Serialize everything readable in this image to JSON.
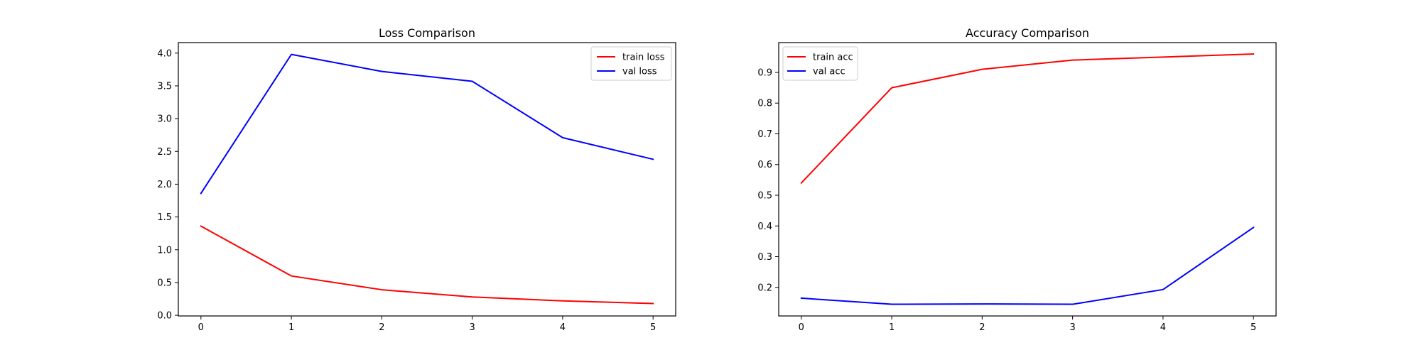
{
  "chart_data": [
    {
      "type": "line",
      "title": "Loss Comparison",
      "xlabel": "",
      "ylabel": "",
      "x": [
        0,
        1,
        2,
        3,
        4,
        5
      ],
      "xlim": [
        -0.25,
        5.25
      ],
      "ylim": [
        -0.01,
        4.16
      ],
      "xticks": [
        0,
        1,
        2,
        3,
        4,
        5
      ],
      "yticks": [
        0.0,
        0.5,
        1.0,
        1.5,
        2.0,
        2.5,
        3.0,
        3.5,
        4.0
      ],
      "ytick_labels": [
        "0.0",
        "0.5",
        "1.0",
        "1.5",
        "2.0",
        "2.5",
        "3.0",
        "3.5",
        "4.0"
      ],
      "grid": false,
      "legend_position": "upper-right",
      "series": [
        {
          "name": "train loss",
          "color": "#ff0000",
          "values": [
            1.36,
            0.6,
            0.39,
            0.28,
            0.22,
            0.18
          ]
        },
        {
          "name": "val loss",
          "color": "#0000ff",
          "values": [
            1.86,
            3.98,
            3.72,
            3.57,
            2.71,
            2.38
          ]
        }
      ]
    },
    {
      "type": "line",
      "title": "Accuracy Comparison",
      "xlabel": "",
      "ylabel": "",
      "x": [
        0,
        1,
        2,
        3,
        4,
        5
      ],
      "xlim": [
        -0.25,
        5.25
      ],
      "ylim": [
        0.107,
        0.997
      ],
      "xticks": [
        0,
        1,
        2,
        3,
        4,
        5
      ],
      "yticks": [
        0.2,
        0.3,
        0.4,
        0.5,
        0.6,
        0.7,
        0.8,
        0.9
      ],
      "ytick_labels": [
        "0.2",
        "0.3",
        "0.4",
        "0.5",
        "0.6",
        "0.7",
        "0.8",
        "0.9"
      ],
      "grid": false,
      "legend_position": "upper-left",
      "series": [
        {
          "name": "train acc",
          "color": "#ff0000",
          "values": [
            0.54,
            0.85,
            0.91,
            0.94,
            0.95,
            0.96
          ]
        },
        {
          "name": "val acc",
          "color": "#0000ff",
          "values": [
            0.165,
            0.145,
            0.146,
            0.145,
            0.193,
            0.395
          ]
        }
      ]
    }
  ]
}
